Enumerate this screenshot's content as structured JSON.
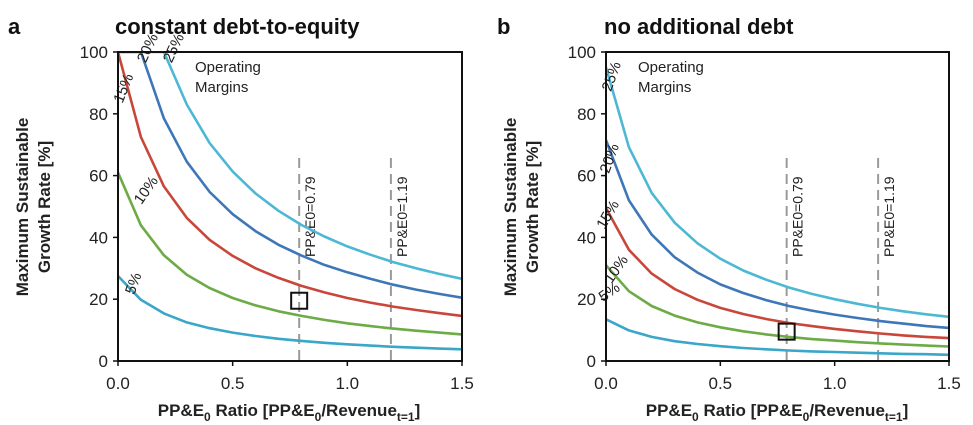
{
  "panels": [
    {
      "letter": "a",
      "title": "constant debt-to-equity",
      "ylabel_line1": "Maximum Sustainable",
      "ylabel_line2": "Growth Rate [%]",
      "xlabel": "PP&E0 Ratio [PP&E0/Revenue t=1]",
      "annotation_line1": "Operating",
      "annotation_line2": "Margins",
      "vlines": [
        {
          "x": 0.79,
          "label": "PP&E0=0.79"
        },
        {
          "x": 1.19,
          "label": "PP&E0=1.19"
        }
      ],
      "marker": {
        "x": 0.79,
        "y": 19.5
      }
    },
    {
      "letter": "b",
      "title": "no additional debt",
      "ylabel_line1": "Maximum Sustainable",
      "ylabel_line2": "Growth Rate [%]",
      "xlabel": "PP&E0 Ratio [PP&E0/Revenue t=1]",
      "annotation_line1": "Operating",
      "annotation_line2": "Margins",
      "vlines": [
        {
          "x": 0.79,
          "label": "PP&E0=0.79"
        },
        {
          "x": 1.19,
          "label": "PP&E0=1.19"
        }
      ],
      "marker": {
        "x": 0.79,
        "y": 9.5
      }
    }
  ],
  "chart_data": [
    {
      "type": "line",
      "title": "constant debt-to-equity",
      "xlabel": "PP&E0 Ratio [PP&E0/Revenue t=1]",
      "ylabel": "Maximum Sustainable Growth Rate [%]",
      "xlim": [
        0,
        1.5
      ],
      "ylim": [
        0,
        100
      ],
      "xticks": [
        "0.0",
        "0.5",
        "1.0",
        "1.5"
      ],
      "yticks": [
        "0",
        "20",
        "40",
        "60",
        "80",
        "100"
      ],
      "x": [
        0.0,
        0.1,
        0.2,
        0.3,
        0.4,
        0.5,
        0.6,
        0.7,
        0.8,
        0.9,
        1.0,
        1.1,
        1.2,
        1.3,
        1.4,
        1.5
      ],
      "series": [
        {
          "name": "5%",
          "color": "#3aa6c8",
          "values": [
            27.5,
            19.8,
            15.4,
            12.5,
            10.6,
            9.2,
            8.1,
            7.2,
            6.5,
            5.9,
            5.4,
            5.0,
            4.6,
            4.3,
            4.0,
            3.8
          ]
        },
        {
          "name": "10%",
          "color": "#6cab45",
          "values": [
            61,
            43.9,
            34.2,
            27.9,
            23.6,
            20.4,
            18.0,
            16.1,
            14.6,
            13.3,
            12.2,
            11.3,
            10.5,
            9.8,
            9.2,
            8.6
          ]
        },
        {
          "name": "15%",
          "color": "#c8473a",
          "values": [
            100,
            72.5,
            56.5,
            46.3,
            39.2,
            34.0,
            30.0,
            26.9,
            24.3,
            22.2,
            20.4,
            18.9,
            17.6,
            16.5,
            15.5,
            14.6
          ]
        },
        {
          "name": "20%",
          "color": "#3e77b8",
          "values": [
            100,
            100,
            78.5,
            64.5,
            54.7,
            47.5,
            42.0,
            37.6,
            34.1,
            31.1,
            28.7,
            26.6,
            24.7,
            23.1,
            21.7,
            20.5
          ]
        },
        {
          "name": "25%",
          "color": "#4db8d4",
          "values": [
            100,
            100,
            100,
            83.0,
            70.5,
            61.3,
            54.2,
            48.6,
            44.0,
            40.3,
            37.1,
            34.4,
            32.0,
            30.0,
            28.2,
            26.6
          ]
        }
      ],
      "curve_labels": [
        "5%",
        "10%",
        "15%",
        "20%",
        "25%"
      ],
      "annotations": [
        "Operating",
        "Margins",
        "PP&E0=0.79",
        "PP&E0=1.19"
      ]
    },
    {
      "type": "line",
      "title": "no additional debt",
      "xlabel": "PP&E0 Ratio [PP&E0/Revenue t=1]",
      "ylabel": "Maximum Sustainable Growth Rate [%]",
      "xlim": [
        0,
        1.5
      ],
      "ylim": [
        0,
        100
      ],
      "xticks": [
        "0.0",
        "0.5",
        "1.0",
        "1.5"
      ],
      "yticks": [
        "0",
        "20",
        "40",
        "60",
        "80",
        "100"
      ],
      "x": [
        0.0,
        0.1,
        0.2,
        0.3,
        0.4,
        0.5,
        0.6,
        0.7,
        0.8,
        0.9,
        1.0,
        1.1,
        1.2,
        1.3,
        1.4,
        1.5
      ],
      "series": [
        {
          "name": "5%",
          "color": "#3aa6c8",
          "values": [
            13.5,
            9.9,
            7.8,
            6.4,
            5.5,
            4.8,
            4.2,
            3.8,
            3.4,
            3.1,
            2.9,
            2.7,
            2.5,
            2.3,
            2.2,
            2.0
          ]
        },
        {
          "name": "10%",
          "color": "#6cab45",
          "values": [
            31,
            22.6,
            17.8,
            14.7,
            12.5,
            10.9,
            9.6,
            8.6,
            7.8,
            7.1,
            6.6,
            6.1,
            5.7,
            5.3,
            5.0,
            4.7
          ]
        },
        {
          "name": "15%",
          "color": "#c8473a",
          "values": [
            49.5,
            36.0,
            28.3,
            23.3,
            19.8,
            17.2,
            15.2,
            13.6,
            12.3,
            11.3,
            10.4,
            9.6,
            8.9,
            8.3,
            7.8,
            7.4
          ]
        },
        {
          "name": "20%",
          "color": "#3e77b8",
          "values": [
            71.5,
            52.0,
            40.9,
            33.6,
            28.6,
            24.8,
            22.0,
            19.7,
            17.8,
            16.3,
            15.0,
            13.9,
            12.9,
            12.1,
            11.3,
            10.7
          ]
        },
        {
          "name": "25%",
          "color": "#4db8d4",
          "values": [
            95,
            69.2,
            54.4,
            44.8,
            38.1,
            33.1,
            29.3,
            26.3,
            23.8,
            21.7,
            20.0,
            18.5,
            17.2,
            16.1,
            15.1,
            14.3
          ]
        }
      ],
      "curve_labels": [
        "5%",
        "10%",
        "15%",
        "20%",
        "25%"
      ],
      "annotations": [
        "Operating",
        "Margins",
        "PP&E0=0.79",
        "PP&E0=1.19"
      ]
    }
  ]
}
